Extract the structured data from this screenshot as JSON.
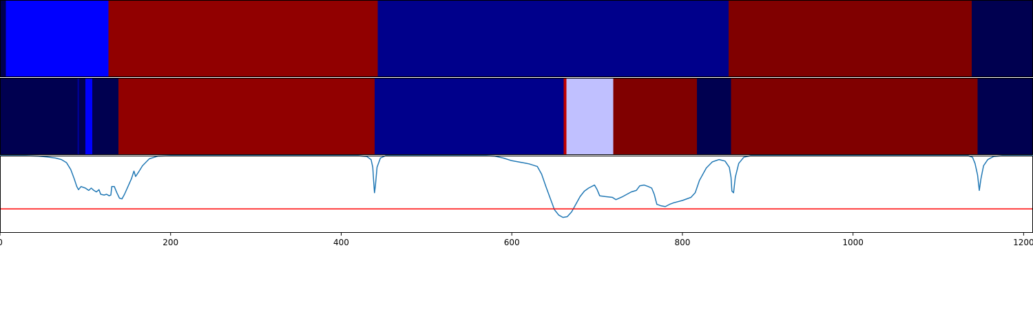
{
  "chart_data": [
    {
      "type": "heatmap",
      "panel": "top-segmentation",
      "x_range": [
        0,
        1211
      ],
      "segments": [
        {
          "start": 0,
          "end": 7,
          "color": "#000050"
        },
        {
          "start": 7,
          "end": 127,
          "color": "#0000ff"
        },
        {
          "start": 127,
          "end": 443,
          "color": "#910000"
        },
        {
          "start": 443,
          "end": 854,
          "color": "#00008b"
        },
        {
          "start": 854,
          "end": 1139,
          "color": "#800000"
        },
        {
          "start": 1139,
          "end": 1211,
          "color": "#000050"
        }
      ]
    },
    {
      "type": "heatmap",
      "panel": "middle-segmentation",
      "x_range": [
        0,
        1211
      ],
      "segments": [
        {
          "start": 0,
          "end": 91,
          "color": "#000050"
        },
        {
          "start": 91,
          "end": 93,
          "color": "#000090"
        },
        {
          "start": 93,
          "end": 100,
          "color": "#000050"
        },
        {
          "start": 100,
          "end": 108,
          "color": "#0000ff"
        },
        {
          "start": 108,
          "end": 139,
          "color": "#000050"
        },
        {
          "start": 139,
          "end": 439,
          "color": "#910000"
        },
        {
          "start": 439,
          "end": 661,
          "color": "#00008b"
        },
        {
          "start": 661,
          "end": 664,
          "color": "#c00000"
        },
        {
          "start": 664,
          "end": 719,
          "color": "#c0c0ff"
        },
        {
          "start": 719,
          "end": 817,
          "color": "#800000"
        },
        {
          "start": 817,
          "end": 857,
          "color": "#000050"
        },
        {
          "start": 857,
          "end": 1146,
          "color": "#800000"
        },
        {
          "start": 1146,
          "end": 1211,
          "color": "#000050"
        }
      ]
    },
    {
      "type": "line",
      "panel": "signal",
      "xlim": [
        0,
        1211
      ],
      "ylim": [
        0,
        1
      ],
      "line_color": "#1f77b4",
      "threshold": 0.31,
      "threshold_color": "#ff0000",
      "xticks": [
        0,
        200,
        400,
        600,
        800,
        1000,
        1200
      ],
      "points": [
        [
          0,
          1.0
        ],
        [
          30,
          1.0
        ],
        [
          45,
          0.995
        ],
        [
          55,
          0.985
        ],
        [
          65,
          0.97
        ],
        [
          72,
          0.95
        ],
        [
          78,
          0.91
        ],
        [
          83,
          0.82
        ],
        [
          87,
          0.7
        ],
        [
          90,
          0.6
        ],
        [
          92,
          0.56
        ],
        [
          95,
          0.6
        ],
        [
          100,
          0.58
        ],
        [
          104,
          0.55
        ],
        [
          107,
          0.58
        ],
        [
          110,
          0.55
        ],
        [
          113,
          0.53
        ],
        [
          116,
          0.56
        ],
        [
          118,
          0.5
        ],
        [
          122,
          0.49
        ],
        [
          125,
          0.5
        ],
        [
          128,
          0.48
        ],
        [
          130,
          0.49
        ],
        [
          131,
          0.6
        ],
        [
          134,
          0.6
        ],
        [
          137,
          0.52
        ],
        [
          140,
          0.45
        ],
        [
          143,
          0.44
        ],
        [
          146,
          0.5
        ],
        [
          150,
          0.6
        ],
        [
          154,
          0.7
        ],
        [
          157,
          0.8
        ],
        [
          159,
          0.73
        ],
        [
          162,
          0.78
        ],
        [
          167,
          0.87
        ],
        [
          175,
          0.96
        ],
        [
          185,
          0.995
        ],
        [
          200,
          1.0
        ],
        [
          420,
          1.0
        ],
        [
          430,
          0.99
        ],
        [
          435,
          0.95
        ],
        [
          437,
          0.85
        ],
        [
          438,
          0.68
        ],
        [
          439,
          0.52
        ],
        [
          440,
          0.6
        ],
        [
          442,
          0.85
        ],
        [
          446,
          0.97
        ],
        [
          452,
          1.0
        ],
        [
          570,
          1.0
        ],
        [
          580,
          0.995
        ],
        [
          590,
          0.97
        ],
        [
          600,
          0.935
        ],
        [
          610,
          0.915
        ],
        [
          620,
          0.895
        ],
        [
          630,
          0.86
        ],
        [
          635,
          0.76
        ],
        [
          640,
          0.6
        ],
        [
          645,
          0.45
        ],
        [
          650,
          0.3
        ],
        [
          655,
          0.23
        ],
        [
          660,
          0.2
        ],
        [
          665,
          0.21
        ],
        [
          670,
          0.27
        ],
        [
          675,
          0.37
        ],
        [
          680,
          0.47
        ],
        [
          685,
          0.54
        ],
        [
          690,
          0.58
        ],
        [
          697,
          0.62
        ],
        [
          700,
          0.56
        ],
        [
          703,
          0.48
        ],
        [
          710,
          0.47
        ],
        [
          718,
          0.46
        ],
        [
          722,
          0.43
        ],
        [
          730,
          0.47
        ],
        [
          740,
          0.53
        ],
        [
          746,
          0.55
        ],
        [
          750,
          0.61
        ],
        [
          755,
          0.62
        ],
        [
          760,
          0.6
        ],
        [
          764,
          0.58
        ],
        [
          767,
          0.5
        ],
        [
          770,
          0.37
        ],
        [
          775,
          0.35
        ],
        [
          780,
          0.34
        ],
        [
          785,
          0.37
        ],
        [
          790,
          0.39
        ],
        [
          800,
          0.42
        ],
        [
          810,
          0.46
        ],
        [
          815,
          0.52
        ],
        [
          820,
          0.68
        ],
        [
          828,
          0.84
        ],
        [
          835,
          0.92
        ],
        [
          843,
          0.95
        ],
        [
          850,
          0.93
        ],
        [
          855,
          0.85
        ],
        [
          857,
          0.72
        ],
        [
          858,
          0.54
        ],
        [
          860,
          0.52
        ],
        [
          862,
          0.72
        ],
        [
          866,
          0.9
        ],
        [
          872,
          0.98
        ],
        [
          880,
          1.0
        ],
        [
          1135,
          1.0
        ],
        [
          1140,
          0.98
        ],
        [
          1143,
          0.9
        ],
        [
          1146,
          0.75
        ],
        [
          1148,
          0.55
        ],
        [
          1150,
          0.7
        ],
        [
          1153,
          0.87
        ],
        [
          1158,
          0.95
        ],
        [
          1165,
          0.99
        ],
        [
          1175,
          1.0
        ],
        [
          1211,
          1.0
        ]
      ]
    }
  ],
  "xtick_labels": [
    "0",
    "200",
    "400",
    "600",
    "800",
    "1000",
    "1200"
  ]
}
